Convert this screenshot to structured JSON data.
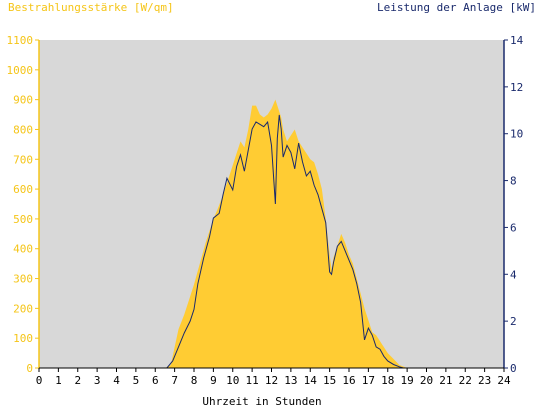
{
  "chart_data": {
    "type": "area",
    "title": "",
    "ylabel_left": "Bestrahlungsstärke [W/qm]",
    "ylabel_right": "Leistung der Anlage [kW]",
    "xlabel": "Uhrzeit in Stunden",
    "xlim": [
      0,
      24
    ],
    "ylim_left": [
      0,
      1100
    ],
    "ylim_right": [
      0,
      14
    ],
    "x_ticks": [
      "0",
      "1",
      "2",
      "3",
      "4",
      "5",
      "6",
      "7",
      "8",
      "9",
      "10",
      "11",
      "12",
      "13",
      "14",
      "15",
      "16",
      "17",
      "18",
      "19",
      "20",
      "21",
      "22",
      "23",
      "24"
    ],
    "y_ticks_left": [
      "0",
      "100",
      "200",
      "300",
      "400",
      "500",
      "600",
      "700",
      "800",
      "900",
      "1000",
      "1100"
    ],
    "y_ticks_right": [
      "0",
      "2",
      "4",
      "6",
      "8",
      "10",
      "12",
      "14"
    ],
    "colors": {
      "plot_background": "#d8d8d8",
      "irradiance_fill": "#ffcc33",
      "power_line": "#1a2a6c",
      "left_axis_text": "#f5c518",
      "right_axis_text": "#1a2a6c"
    },
    "series": [
      {
        "name": "Bestrahlungsstärke",
        "axis": "left",
        "kind": "area",
        "x": [
          0,
          6.5,
          6.8,
          7.0,
          7.2,
          7.5,
          7.8,
          8.0,
          8.3,
          8.6,
          8.8,
          9.0,
          9.2,
          9.5,
          9.7,
          10.0,
          10.2,
          10.4,
          10.6,
          10.8,
          11.0,
          11.2,
          11.4,
          11.6,
          11.8,
          12.0,
          12.2,
          12.4,
          12.5,
          12.6,
          12.8,
          13.0,
          13.2,
          13.4,
          13.6,
          13.8,
          14.0,
          14.2,
          14.4,
          14.6,
          14.8,
          15.0,
          15.1,
          15.2,
          15.4,
          15.6,
          15.8,
          16.0,
          16.2,
          16.4,
          16.6,
          16.8,
          17.0,
          17.2,
          17.4,
          17.6,
          17.8,
          18.0,
          18.3,
          18.6,
          18.8,
          19.0,
          24
        ],
        "values": [
          0,
          0,
          10,
          70,
          130,
          180,
          240,
          280,
          350,
          420,
          460,
          500,
          530,
          580,
          620,
          680,
          720,
          760,
          740,
          800,
          880,
          880,
          850,
          840,
          850,
          870,
          900,
          860,
          840,
          800,
          760,
          780,
          800,
          760,
          740,
          720,
          700,
          690,
          650,
          600,
          500,
          380,
          330,
          370,
          410,
          450,
          420,
          380,
          350,
          300,
          250,
          200,
          160,
          120,
          110,
          90,
          70,
          50,
          30,
          10,
          5,
          0,
          0
        ]
      },
      {
        "name": "Leistung der Anlage",
        "axis": "right",
        "kind": "line",
        "x": [
          0,
          6.6,
          6.9,
          7.2,
          7.5,
          7.8,
          8.0,
          8.2,
          8.5,
          8.8,
          9.0,
          9.3,
          9.5,
          9.7,
          10.0,
          10.2,
          10.4,
          10.6,
          10.8,
          11.0,
          11.2,
          11.4,
          11.6,
          11.8,
          12.0,
          12.2,
          12.3,
          12.4,
          12.5,
          12.6,
          12.8,
          13.0,
          13.2,
          13.4,
          13.6,
          13.8,
          14.0,
          14.2,
          14.4,
          14.6,
          14.8,
          15.0,
          15.1,
          15.2,
          15.4,
          15.6,
          15.8,
          16.0,
          16.2,
          16.4,
          16.6,
          16.8,
          17.0,
          17.2,
          17.4,
          17.6,
          17.8,
          18.0,
          18.3,
          18.6,
          18.8,
          19.0,
          24
        ],
        "values": [
          0,
          0,
          0.3,
          0.9,
          1.5,
          2.0,
          2.5,
          3.6,
          4.7,
          5.6,
          6.4,
          6.6,
          7.4,
          8.1,
          7.6,
          8.6,
          9.1,
          8.4,
          9.3,
          10.2,
          10.5,
          10.4,
          10.3,
          10.5,
          9.5,
          7.0,
          9.8,
          10.8,
          10.2,
          9.0,
          9.5,
          9.2,
          8.5,
          9.6,
          8.8,
          8.2,
          8.4,
          7.8,
          7.4,
          6.8,
          6.2,
          4.1,
          4.0,
          4.5,
          5.2,
          5.4,
          5.0,
          4.6,
          4.2,
          3.6,
          2.8,
          1.2,
          1.7,
          1.4,
          0.9,
          0.8,
          0.5,
          0.3,
          0.15,
          0.05,
          0,
          0,
          0
        ]
      }
    ]
  }
}
